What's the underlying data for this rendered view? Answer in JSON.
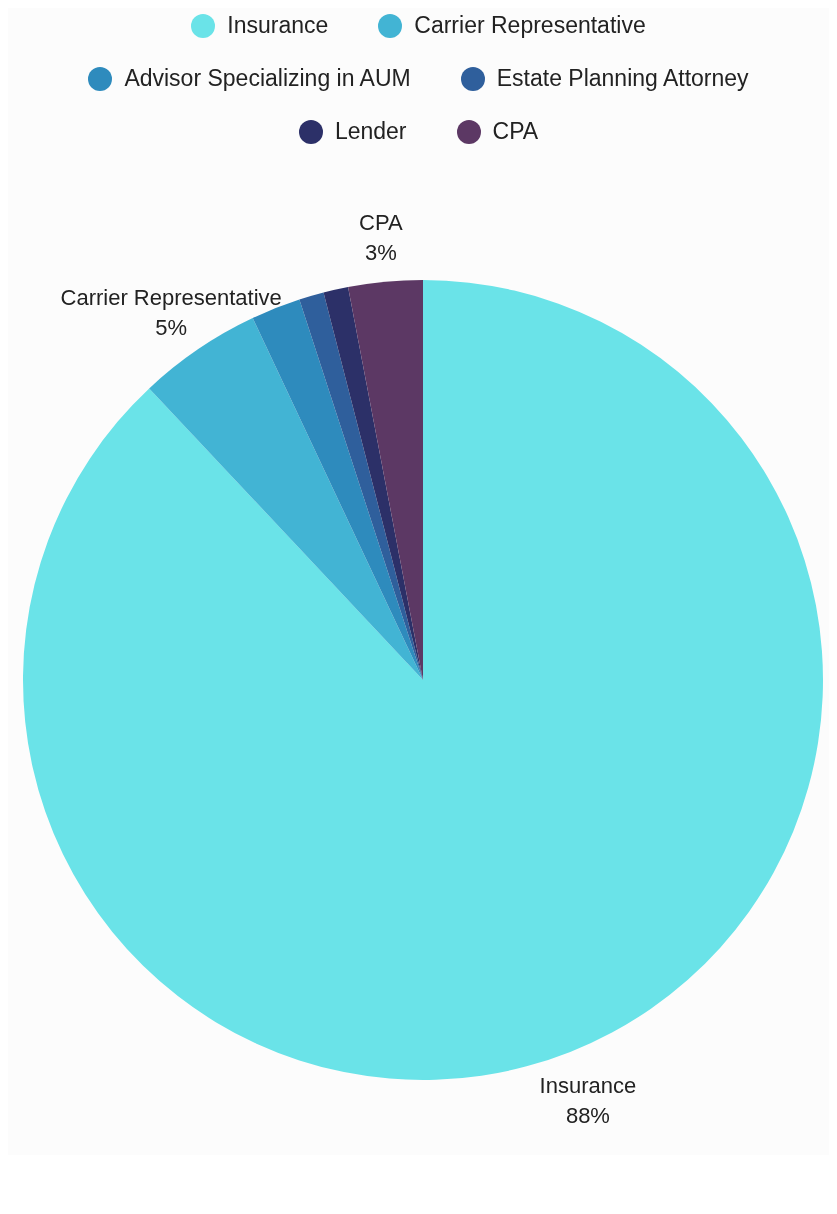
{
  "chart_data": {
    "type": "pie",
    "categories": [
      "Insurance",
      "Carrier Representative",
      "Advisor Specializing in AUM",
      "Estate Planning Attorney",
      "Lender",
      "CPA"
    ],
    "values": [
      88,
      5,
      2,
      1,
      1,
      3
    ],
    "colors": [
      "#6ae3e8",
      "#42b4d4",
      "#2e8bbd",
      "#2f5f9c",
      "#2c3068",
      "#5c3864"
    ],
    "value_labels": [
      "88%",
      "5%",
      null,
      null,
      null,
      "3%"
    ],
    "legend": "top"
  }
}
